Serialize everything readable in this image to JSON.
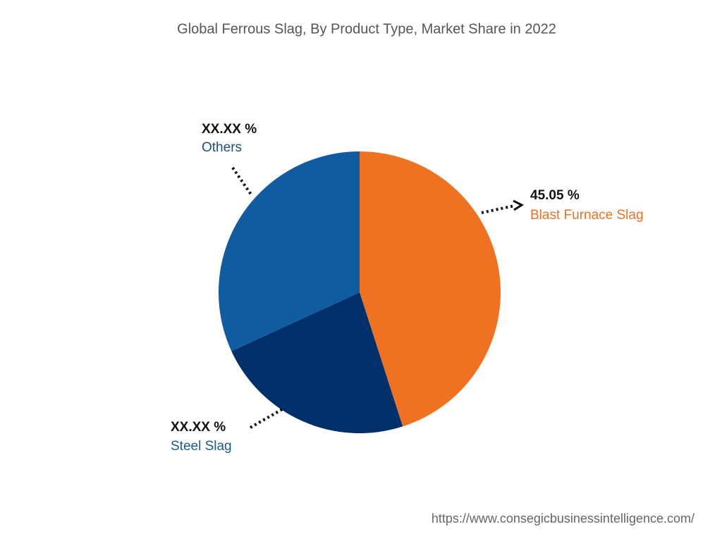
{
  "chart_data": {
    "type": "pie",
    "title": "Global Ferrous Slag, By Product Type, Market Share in 2022",
    "categories": [
      "Blast Furnace Slag",
      "Steel Slag",
      "Others"
    ],
    "values": [
      45.05,
      23.1,
      31.85
    ],
    "value_labels": [
      "45.05 %",
      "XX.XX %",
      "XX.XX %"
    ],
    "colors": [
      "#f07122",
      "#00306a",
      "#0f5da0"
    ],
    "source": "https://www.consegicbusinessintelligence.com/"
  }
}
